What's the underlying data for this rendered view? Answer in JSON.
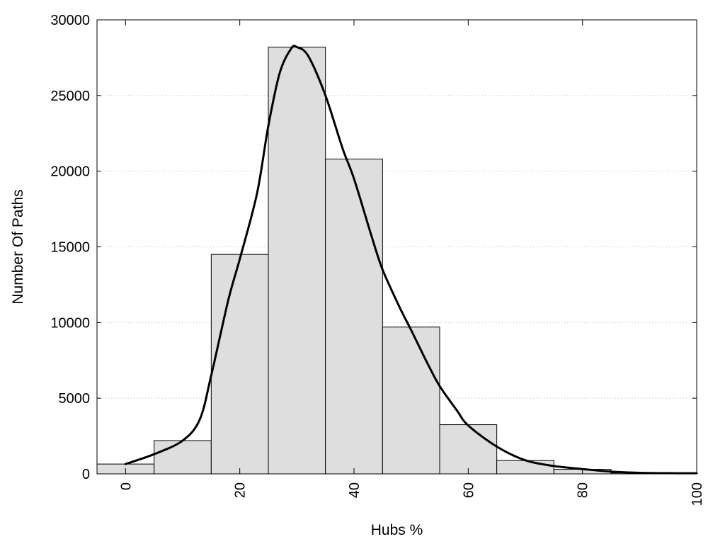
{
  "chart_data": {
    "type": "bar",
    "xlabel": "Hubs %",
    "ylabel": "Number Of Paths",
    "xlim": [
      -5,
      100
    ],
    "ylim": [
      0,
      30000
    ],
    "grid": "horizontal dotted",
    "bar_color": "#dedede",
    "bin_width": 10,
    "bins": [
      {
        "x": 0,
        "value": 650
      },
      {
        "x": 10,
        "value": 2200
      },
      {
        "x": 20,
        "value": 14500
      },
      {
        "x": 30,
        "value": 28200
      },
      {
        "x": 40,
        "value": 20800
      },
      {
        "x": 50,
        "value": 9700
      },
      {
        "x": 60,
        "value": 3250
      },
      {
        "x": 70,
        "value": 880
      },
      {
        "x": 80,
        "value": 300
      },
      {
        "x": 90,
        "value": 60
      }
    ],
    "curve": {
      "type": "line",
      "color": "#000000",
      "x": [
        0,
        5,
        10,
        13,
        15,
        18,
        20,
        23,
        25,
        27,
        29,
        30,
        32,
        35,
        38,
        40,
        43,
        45,
        48,
        50,
        53,
        55,
        58,
        60,
        65,
        70,
        75,
        80,
        85,
        90,
        95,
        100
      ],
      "y": [
        650,
        1300,
        2200,
        3600,
        6500,
        11500,
        14200,
        18500,
        23000,
        26500,
        28100,
        28200,
        27600,
        25000,
        21500,
        19500,
        15800,
        13500,
        11000,
        9500,
        7200,
        5800,
        4200,
        3200,
        1800,
        900,
        520,
        320,
        150,
        70,
        45,
        40
      ]
    },
    "x_ticks": [
      "0",
      "20",
      "40",
      "60",
      "80",
      "100"
    ],
    "y_ticks": [
      "0",
      "5000",
      "10000",
      "15000",
      "20000",
      "25000",
      "30000"
    ]
  }
}
